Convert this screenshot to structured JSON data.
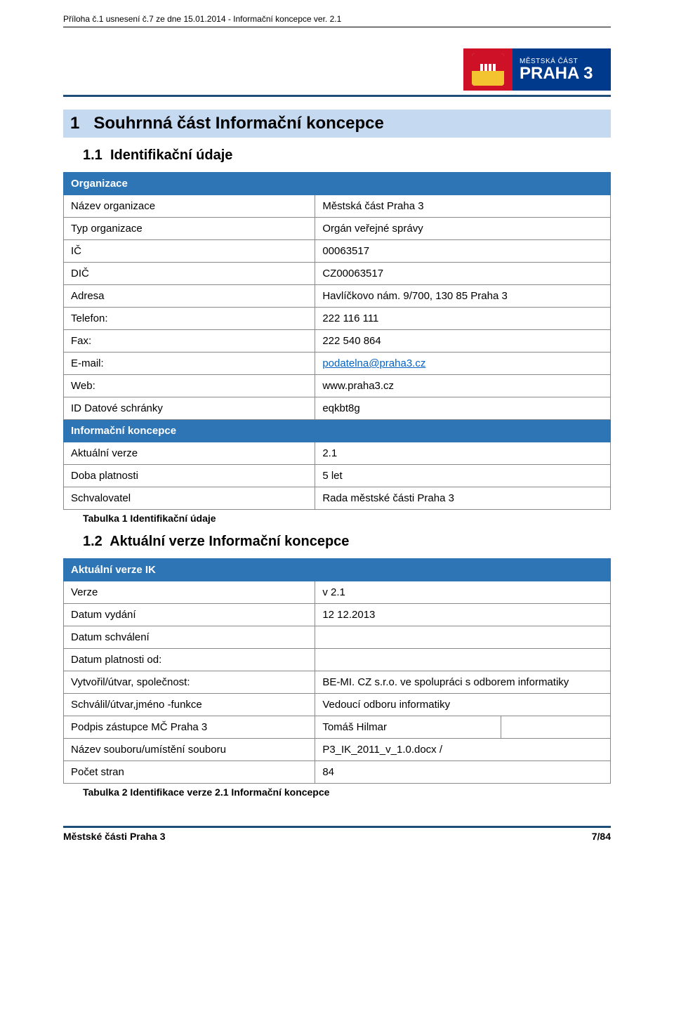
{
  "header_note": "Příloha č.1 usnesení č.7 ze dne 15.01.2014 - Informační koncepce ver. 2.1",
  "logo": {
    "sub": "MĚSTSKÁ ČÁST",
    "main": "PRAHA 3"
  },
  "section1": {
    "number": "1",
    "title": "Souhrnná část Informační koncepce"
  },
  "sub11": {
    "number": "1.1",
    "title": "Identifikační údaje"
  },
  "table1": {
    "header_org": "Organizace",
    "rows_org": [
      [
        "Název organizace",
        "Městská část Praha 3"
      ],
      [
        "Typ organizace",
        "Orgán veřejné správy"
      ],
      [
        "IČ",
        "00063517"
      ],
      [
        "DIČ",
        "CZ00063517"
      ],
      [
        "Adresa",
        "Havlíčkovo nám. 9/700, 130 85 Praha 3"
      ],
      [
        "Telefon:",
        "222 116 111"
      ],
      [
        "Fax:",
        "222 540 864"
      ],
      [
        "E-mail:",
        "podatelna@praha3.cz"
      ],
      [
        "Web:",
        "www.praha3.cz"
      ],
      [
        "ID Datové schránky",
        "eqkbt8g"
      ]
    ],
    "email_row_index": 7,
    "header_ik": "Informační koncepce",
    "rows_ik": [
      [
        "Aktuální verze",
        "2.1"
      ],
      [
        "Doba platnosti",
        "5 let"
      ],
      [
        "Schvalovatel",
        "Rada městské části Praha 3"
      ]
    ],
    "caption": "Tabulka 1 Identifikační údaje"
  },
  "sub12": {
    "number": "1.2",
    "title": "Aktuální verze Informační koncepce"
  },
  "table2": {
    "header": "Aktuální verze IK",
    "rows": [
      [
        "Verze",
        "v 2.1"
      ],
      [
        "Datum vydání",
        "12 12.2013"
      ],
      [
        "Datum schválení",
        ""
      ],
      [
        "Datum platnosti od:",
        ""
      ],
      [
        "Vytvořil/útvar, společnost:",
        "BE-MI. CZ s.r.o. ve spolupráci s odborem informatiky"
      ],
      [
        "Schválil/útvar,jméno -funkce",
        "Vedoucí odboru informatiky"
      ]
    ],
    "sig_row": [
      "Podpis zástupce MČ Praha 3",
      "Tomáš Hilmar",
      ""
    ],
    "rows2": [
      [
        "Název souboru/umístění souboru",
        "P3_IK_2011_v_1.0.docx /"
      ],
      [
        "Počet stran",
        "84"
      ]
    ],
    "caption": "Tabulka 2 Identifikace verze 2.1 Informační koncepce"
  },
  "footer": {
    "left": "Městské části Praha 3",
    "right": "7/84"
  },
  "colors": {
    "blue_header": "#2e75b6",
    "blue_rule": "#1f4e79",
    "panel_bg": "#c5d9f1",
    "link": "#0563c1",
    "red": "#ce1126",
    "dark_blue": "#003a8c"
  }
}
